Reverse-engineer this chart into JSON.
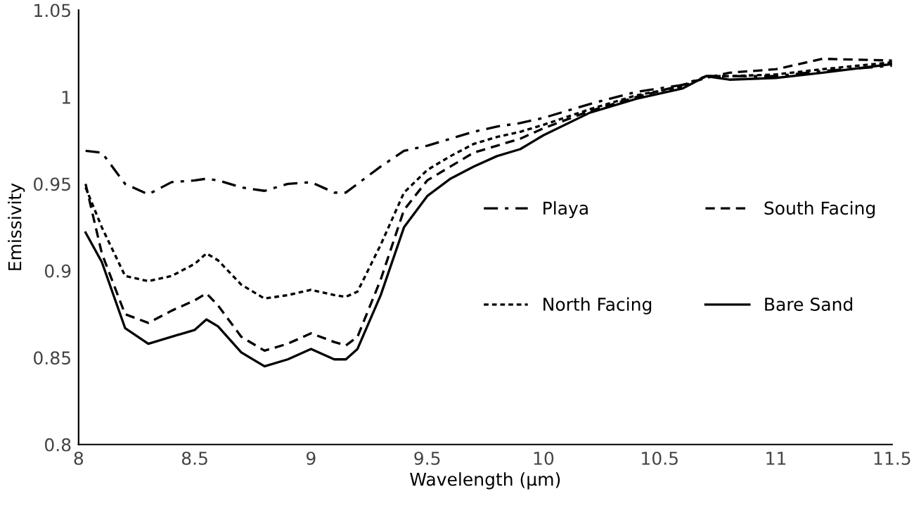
{
  "chart_data": {
    "type": "line",
    "xlabel": "Wavelength (µm)",
    "ylabel": "Emissivity",
    "x": [
      8.03,
      8.1,
      8.2,
      8.3,
      8.4,
      8.5,
      8.55,
      8.6,
      8.7,
      8.8,
      8.9,
      9.0,
      9.1,
      9.15,
      9.2,
      9.3,
      9.4,
      9.5,
      9.6,
      9.7,
      9.8,
      9.9,
      10.0,
      10.2,
      10.4,
      10.6,
      10.7,
      10.8,
      11.0,
      11.2,
      11.5
    ],
    "series": [
      {
        "name": "Playa",
        "color": "#000000",
        "line_style": "dashdot",
        "values": [
          0.969,
          0.968,
          0.95,
          0.944,
          0.951,
          0.952,
          0.953,
          0.952,
          0.948,
          0.946,
          0.95,
          0.951,
          0.945,
          0.945,
          0.95,
          0.96,
          0.969,
          0.972,
          0.976,
          0.98,
          0.983,
          0.985,
          0.988,
          0.996,
          1.003,
          1.007,
          1.012,
          1.012,
          1.012,
          1.015,
          1.018
        ]
      },
      {
        "name": "North Facing",
        "color": "#000000",
        "line_style": "dotted",
        "values": [
          0.948,
          0.925,
          0.897,
          0.894,
          0.897,
          0.904,
          0.91,
          0.906,
          0.892,
          0.884,
          0.886,
          0.889,
          0.886,
          0.885,
          0.888,
          0.915,
          0.945,
          0.958,
          0.966,
          0.973,
          0.977,
          0.98,
          0.984,
          0.993,
          1.001,
          1.006,
          1.012,
          1.012,
          1.013,
          1.016,
          1.02
        ]
      },
      {
        "name": "South Facing",
        "color": "#000000",
        "line_style": "dashed",
        "values": [
          0.95,
          0.91,
          0.875,
          0.87,
          0.877,
          0.883,
          0.887,
          0.88,
          0.862,
          0.854,
          0.858,
          0.864,
          0.859,
          0.857,
          0.862,
          0.895,
          0.935,
          0.952,
          0.96,
          0.968,
          0.972,
          0.976,
          0.982,
          0.992,
          1.0,
          1.007,
          1.011,
          1.014,
          1.016,
          1.022,
          1.021
        ]
      },
      {
        "name": "Bare Sand",
        "color": "#000000",
        "line_style": "solid",
        "values": [
          0.922,
          0.905,
          0.867,
          0.858,
          0.862,
          0.866,
          0.872,
          0.868,
          0.853,
          0.845,
          0.849,
          0.855,
          0.849,
          0.849,
          0.855,
          0.886,
          0.925,
          0.943,
          0.953,
          0.96,
          0.966,
          0.97,
          0.978,
          0.991,
          0.999,
          1.005,
          1.012,
          1.01,
          1.011,
          1.014,
          1.019
        ]
      }
    ],
    "xlim": [
      8,
      11.5
    ],
    "xticks": [
      8,
      8.5,
      9,
      9.5,
      10,
      10.5,
      11,
      11.5
    ],
    "ylim": [
      0.8,
      1.05
    ],
    "yticks": [
      0.8,
      0.85,
      0.9,
      0.95,
      1,
      1.05
    ],
    "grid": false,
    "legend": "right"
  }
}
